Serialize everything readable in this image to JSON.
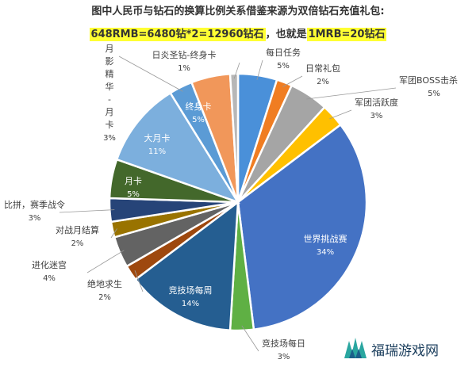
{
  "header": {
    "title": "图中人民币与钻石的换算比例关系借鉴来源为双倍钻石充值礼包:",
    "rate_part1": "648RMB=6480钻*2=12960钻石",
    "rate_mid": "，也就是",
    "rate_part2": "1MRB=20钻石"
  },
  "watermark": {
    "text": "福瑞游戏网",
    "icon": "furui-logo-icon"
  },
  "chart_data": {
    "type": "pie",
    "title": "图中人民币与钻石的换算比例关系借鉴来源为双倍钻石充值礼包:",
    "slices": [
      {
        "label": "每日任务",
        "value": 5,
        "pct": "5%",
        "color": "#4a90d9"
      },
      {
        "label": "日常礼包",
        "value": 2,
        "pct": "2%",
        "color": "#f07d22"
      },
      {
        "label": "军团BOSS击杀",
        "value": 5,
        "pct": "5%",
        "color": "#a5a5a5"
      },
      {
        "label": "军团活跃度",
        "value": 3,
        "pct": "3%",
        "color": "#ffc000"
      },
      {
        "label": "世界挑战赛",
        "value": 34,
        "pct": "34%",
        "color": "#4472c4"
      },
      {
        "label": "竞技场每日",
        "value": 3,
        "pct": "3%",
        "color": "#5fb044"
      },
      {
        "label": "竞技场每周",
        "value": 14,
        "pct": "14%",
        "color": "#255e91"
      },
      {
        "label": "绝地求生",
        "value": 2,
        "pct": "2%",
        "color": "#9e480e"
      },
      {
        "label": "进化迷宫",
        "value": 4,
        "pct": "4%",
        "color": "#636363"
      },
      {
        "label": "对战月结算",
        "value": 2,
        "pct": "2%",
        "color": "#997300"
      },
      {
        "label": "比拼，赛季战令",
        "value": 3,
        "pct": "3%",
        "color": "#264478"
      },
      {
        "label": "月卡",
        "value": 5,
        "pct": "5%",
        "color": "#43682b"
      },
      {
        "label": "大月卡",
        "value": 11,
        "pct": "11%",
        "color": "#7cafdd"
      },
      {
        "label": "月影精华-月卡",
        "value": 3,
        "pct": "3%",
        "color": "#5b9bd5"
      },
      {
        "label": "终身卡",
        "value": 5,
        "pct": "5%",
        "color": "#f1975a"
      },
      {
        "label": "日炎圣钻-终身卡",
        "value": 1,
        "pct": "1%",
        "color": "#b7b7b7"
      }
    ]
  }
}
